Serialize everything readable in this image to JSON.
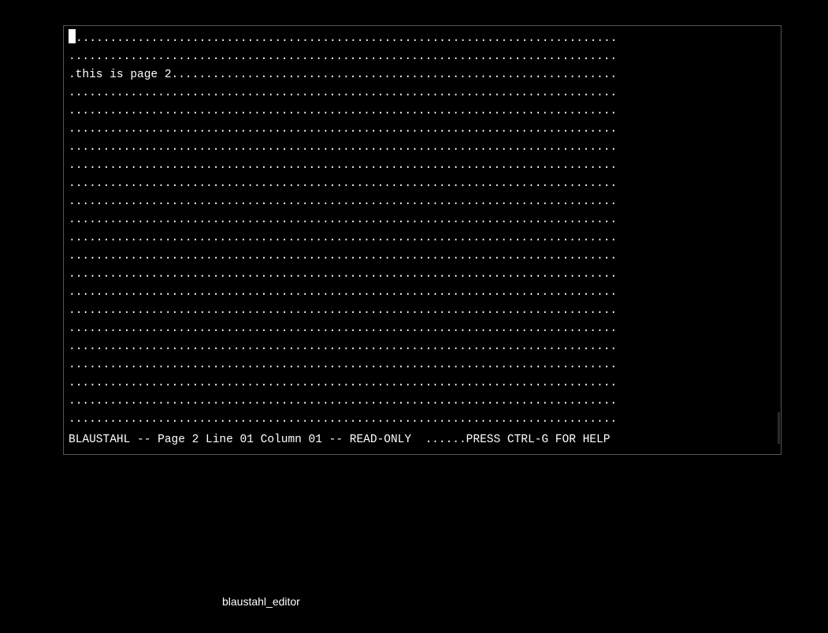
{
  "terminal": {
    "cols": 80,
    "text_rows": 22,
    "line_with_text_index": 2,
    "line_with_text": ".this is page 2",
    "status": {
      "app": "BLAUSTAHL",
      "page": 2,
      "line": "01",
      "column": "01",
      "mode": "READ-ONLY",
      "help_hint": "PRESS CTRL-G FOR HELP",
      "full_text": "BLAUSTAHL -- Page 2 Line 01 Column 01 -- READ-ONLY  ......PRESS CTRL-G FOR HELP"
    },
    "colors": {
      "background": "#000000",
      "foreground": "#ffffff",
      "border": "#555555",
      "cursor": "#ffffff"
    },
    "fill_char": ".",
    "cursor": {
      "row": 0,
      "col": 0
    }
  },
  "caption": "blaustahl_editor"
}
